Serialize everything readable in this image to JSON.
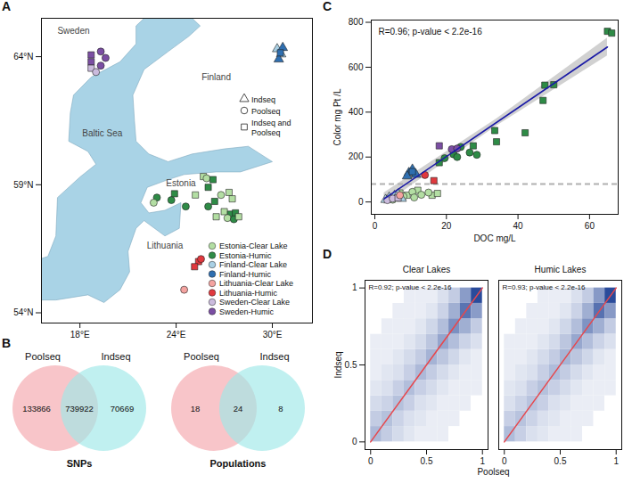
{
  "chart_data": [
    {
      "type": "map",
      "panel": "A",
      "xlim": [
        15.6,
        32.5
      ],
      "ylim": [
        53.6,
        65.5
      ],
      "xticks": [
        {
          "value": 18,
          "label": "18°E"
        },
        {
          "value": 24,
          "label": "24°E"
        },
        {
          "value": 30,
          "label": "30°E"
        }
      ],
      "yticks": [
        {
          "value": 54,
          "label": "54°N"
        },
        {
          "value": 59,
          "label": "59°N"
        },
        {
          "value": 64,
          "label": "64°N"
        }
      ],
      "baltic_sea": {
        "color": "#a9d3e6",
        "lon": [
          24.5,
          25.5,
          24.8,
          23.5,
          22,
          21.3,
          21.4,
          21.5,
          22.3,
          23.5,
          25,
          27,
          28.5,
          30,
          28,
          26.5,
          24.5,
          23.5,
          22.2,
          21.8,
          22.3,
          23.3,
          24.3,
          24.2,
          23.3,
          22,
          21.5,
          21,
          21.1,
          20.5,
          19.5,
          18.5,
          16.5,
          15,
          15,
          16,
          16.5,
          16.6,
          18,
          19,
          18.5,
          17.3,
          17.4,
          17.6,
          18.7,
          20.5,
          21.5,
          21.5,
          22.5
        ],
        "lat": [
          65.8,
          65.2,
          64.8,
          64.2,
          63.5,
          62.5,
          61.5,
          60.7,
          60.2,
          59.9,
          60.2,
          60.4,
          60.5,
          59.9,
          59.5,
          59.5,
          59.4,
          59.2,
          58.9,
          58.3,
          57.9,
          58.0,
          58.3,
          57.3,
          57,
          57.6,
          57.3,
          56.4,
          55.6,
          54.9,
          54.4,
          54.7,
          54.5,
          54.5,
          56,
          56.2,
          57,
          58.5,
          59.3,
          59.8,
          60.3,
          60.7,
          61.8,
          62.5,
          63.2,
          63.8,
          64.5,
          65.2,
          65.8
        ]
      },
      "annotations": [
        {
          "text": "Sweden",
          "x": 17.6,
          "y": 65.0
        },
        {
          "text": "Finland",
          "x": 26.5,
          "y": 63.2
        },
        {
          "text": "Baltic Sea",
          "x": 19.4,
          "y": 61.0
        },
        {
          "text": "Estonia",
          "x": 24.3,
          "y": 59.05
        },
        {
          "text": "Lithuania",
          "x": 23.3,
          "y": 56.6
        }
      ],
      "series": [
        {
          "name": "Estonia-Clear Lake",
          "color": "#b3dea3"
        },
        {
          "name": "Estonia-Humic",
          "color": "#2e8b46"
        },
        {
          "name": "Finland-Clear Lake",
          "color": "#a9d0e4"
        },
        {
          "name": "Finland-Humic",
          "color": "#2f6fb0"
        },
        {
          "name": "Lithuania-Clear Lake",
          "color": "#f4a3a0"
        },
        {
          "name": "Lithuania-Humic",
          "color": "#e0393e"
        },
        {
          "name": "Sweden-Clear Lake",
          "color": "#cbbbdd"
        },
        {
          "name": "Sweden-Humic",
          "color": "#7b4ea3"
        }
      ],
      "markers": [
        {
          "name": "Indseq",
          "marker": "triangle"
        },
        {
          "name": "Poolseq",
          "marker": "circle"
        },
        {
          "name": "Indseq and Poolseq",
          "marker": "square"
        }
      ],
      "legend": "right",
      "points": {
        "x": [
          18.7,
          18.7,
          18.7,
          19.3,
          19.6,
          19.3,
          19.0,
          30.3,
          30.55,
          30.4,
          30.65,
          30.5,
          25.7,
          25.9,
          26.3,
          26.0,
          23.9,
          22.8,
          22.6,
          23.7,
          24.6,
          26.4,
          26.0,
          27.3,
          27.5,
          27.0,
          27.4,
          27.7,
          27.2,
          27.6,
          26.5,
          27.9,
          26.8,
          25.2,
          25.4,
          25.15,
          25.55,
          24.5
        ],
        "y": [
          64.07,
          63.8,
          63.55,
          64.2,
          63.95,
          63.65,
          63.4,
          64.3,
          64.1,
          63.9,
          64.35,
          64.15,
          59.32,
          59.25,
          59.2,
          58.9,
          58.65,
          58.5,
          58.3,
          58.4,
          58.15,
          58.35,
          58.15,
          58.7,
          58.45,
          57.95,
          57.85,
          57.9,
          57.7,
          57.65,
          57.75,
          57.75,
          58.6,
          58.6,
          56.0,
          55.8,
          56.1,
          54.9
        ],
        "group": [
          "Sweden-Humic",
          "Sweden-Humic",
          "Sweden-Clear Lake",
          "Sweden-Humic",
          "Sweden-Humic",
          "Sweden-Humic",
          "Sweden-Clear Lake",
          "Finland-Clear Lake",
          "Finland-Clear Lake",
          "Finland-Humic",
          "Finland-Humic",
          "Finland-Humic",
          "Estonia-Clear Lake",
          "Estonia-Clear Lake",
          "Estonia-Humic",
          "Estonia-Humic",
          "Estonia-Humic",
          "Estonia-Humic",
          "Estonia-Clear Lake",
          "Estonia-Humic",
          "Estonia-Humic",
          "Estonia-Humic",
          "Estonia-Humic",
          "Estonia-Clear Lake",
          "Estonia-Clear Lake",
          "Estonia-Clear Lake",
          "Estonia-Humic",
          "Estonia-Humic",
          "Estonia-Clear Lake",
          "Estonia-Humic",
          "Estonia-Clear Lake",
          "Estonia-Clear Lake",
          "Estonia-Clear Lake",
          "Estonia-Clear Lake",
          "Lithuania-Humic",
          "Lithuania-Humic",
          "Lithuania-Humic",
          "Lithuania-Clear Lake"
        ],
        "shape": [
          "Indseq and Poolseq",
          "Indseq and Poolseq",
          "Indseq and Poolseq",
          "Poolseq",
          "Poolseq",
          "Poolseq",
          "Poolseq",
          "Indseq",
          "Indseq",
          "Indseq",
          "Indseq",
          "Indseq and Poolseq",
          "Indseq and Poolseq",
          "Poolseq",
          "Indseq and Poolseq",
          "Indseq and Poolseq",
          "Indseq and Poolseq",
          "Poolseq",
          "Poolseq",
          "Poolseq",
          "Poolseq",
          "Indseq and Poolseq",
          "Poolseq",
          "Indseq and Poolseq",
          "Indseq and Poolseq",
          "Indseq and Poolseq",
          "Indseq and Poolseq",
          "Indseq and Poolseq",
          "Poolseq",
          "Poolseq",
          "Indseq and Poolseq",
          "Indseq and Poolseq",
          "Poolseq",
          "Indseq and Poolseq",
          "Indseq and Poolseq",
          "Indseq and Poolseq",
          "Poolseq",
          "Poolseq"
        ]
      }
    },
    {
      "type": "venn",
      "panel": "B",
      "diagrams": [
        {
          "sets": [
            {
              "name": "Poolseq",
              "color": "#f4a6ac"
            },
            {
              "name": "Indseq",
              "color": "#9ee8e8"
            }
          ],
          "values": [
            133866,
            739922,
            70669
          ],
          "caption": "SNPs"
        },
        {
          "sets": [
            {
              "name": "Poolseq",
              "color": "#f4a6ac"
            },
            {
              "name": "Indseq",
              "color": "#9ee8e8"
            }
          ],
          "values": [
            18,
            24,
            8
          ],
          "caption": "Populations"
        }
      ]
    },
    {
      "type": "scatter",
      "panel": "C",
      "x_label": "DOC mg/L",
      "y_label": "Color mg Pt /L",
      "xlim": [
        -1,
        68
      ],
      "ylim": [
        -55,
        810
      ],
      "xticks": [
        0,
        20,
        40,
        60
      ],
      "yticks": [
        0,
        200,
        400,
        600,
        800
      ],
      "annotation": "R=0.96; p-value < 2.2e-16",
      "series": [
        {
          "name": "Estonia-Clear Lake",
          "color": "#b3dea3"
        },
        {
          "name": "Estonia-Humic",
          "color": "#2e8b46"
        },
        {
          "name": "Finland-Clear Lake",
          "color": "#a9d0e4"
        },
        {
          "name": "Finland-Humic",
          "color": "#2f6fb0"
        },
        {
          "name": "Lithuania-Clear Lake",
          "color": "#f4a3a0"
        },
        {
          "name": "Lithuania-Humic",
          "color": "#e0393e"
        },
        {
          "name": "Sweden-Clear Lake",
          "color": "#cbbbdd"
        },
        {
          "name": "Sweden-Humic",
          "color": "#7b4ea3"
        }
      ],
      "markers": [
        {
          "name": "Indseq",
          "marker": "triangle"
        },
        {
          "name": "Poolseq",
          "marker": "circle"
        },
        {
          "name": "Indseq and Poolseq",
          "marker": "square"
        }
      ],
      "x": [
        65,
        66.2,
        47.5,
        50,
        47,
        42,
        33.5,
        34,
        27.5,
        18,
        19.5,
        22,
        24,
        26.5,
        28.5,
        23,
        18,
        21.5,
        23,
        9.5,
        10.5,
        11.5,
        9,
        10.5,
        14,
        16.5,
        4,
        6,
        7,
        9,
        12,
        16,
        17.5,
        5,
        8,
        10.5,
        13,
        11,
        15,
        3,
        4,
        5.5,
        6.5,
        7.5,
        3.5,
        5,
        6.5,
        7
      ],
      "y": [
        760,
        752,
        520,
        522,
        452,
        308,
        318,
        268,
        250,
        175,
        195,
        212,
        245,
        220,
        210,
        200,
        250,
        235,
        238,
        130,
        145,
        122,
        115,
        135,
        120,
        95,
        15,
        22,
        40,
        30,
        52,
        30,
        38,
        10,
        25,
        45,
        32,
        20,
        42,
        10,
        20,
        28,
        35,
        15,
        8,
        15,
        18,
        30
      ],
      "group": [
        "Estonia-Humic",
        "Estonia-Humic",
        "Estonia-Humic",
        "Estonia-Humic",
        "Estonia-Humic",
        "Estonia-Humic",
        "Estonia-Humic",
        "Estonia-Humic",
        "Estonia-Humic",
        "Estonia-Humic",
        "Estonia-Humic",
        "Estonia-Humic",
        "Estonia-Humic",
        "Estonia-Humic",
        "Estonia-Humic",
        "Estonia-Humic",
        "Sweden-Humic",
        "Sweden-Humic",
        "Sweden-Humic",
        "Finland-Humic",
        "Finland-Humic",
        "Finland-Humic",
        "Finland-Humic",
        "Finland-Humic",
        "Lithuania-Humic",
        "Lithuania-Humic",
        "Estonia-Clear Lake",
        "Estonia-Clear Lake",
        "Estonia-Clear Lake",
        "Estonia-Clear Lake",
        "Estonia-Clear Lake",
        "Estonia-Clear Lake",
        "Estonia-Clear Lake",
        "Estonia-Clear Lake",
        "Estonia-Clear Lake",
        "Estonia-Clear Lake",
        "Estonia-Clear Lake",
        "Estonia-Clear Lake",
        "Estonia-Clear Lake",
        "Finland-Clear Lake",
        "Finland-Clear Lake",
        "Finland-Clear Lake",
        "Finland-Clear Lake",
        "Finland-Clear Lake",
        "Sweden-Clear Lake",
        "Sweden-Clear Lake",
        "Sweden-Clear Lake",
        "Lithuania-Clear Lake"
      ],
      "shape": [
        "Indseq and Poolseq",
        "Indseq and Poolseq",
        "Indseq and Poolseq",
        "Indseq and Poolseq",
        "Indseq and Poolseq",
        "Indseq and Poolseq",
        "Indseq and Poolseq",
        "Indseq and Poolseq",
        "Indseq and Poolseq",
        "Indseq and Poolseq",
        "Poolseq",
        "Poolseq",
        "Poolseq",
        "Poolseq",
        "Poolseq",
        "Poolseq",
        "Indseq and Poolseq",
        "Poolseq",
        "Poolseq",
        "Indseq",
        "Indseq",
        "Indseq",
        "Indseq",
        "Indseq and Poolseq",
        "Poolseq",
        "Indseq and Poolseq",
        "Indseq and Poolseq",
        "Indseq and Poolseq",
        "Indseq and Poolseq",
        "Indseq and Poolseq",
        "Indseq and Poolseq",
        "Indseq and Poolseq",
        "Indseq and Poolseq",
        "Poolseq",
        "Poolseq",
        "Poolseq",
        "Poolseq",
        "Poolseq",
        "Poolseq",
        "Indseq",
        "Indseq",
        "Indseq",
        "Indseq",
        "Indseq",
        "Poolseq",
        "Poolseq",
        "Indseq and Poolseq",
        "Poolseq"
      ],
      "fit": {
        "x": [
          2.6,
          65
        ],
        "y": [
          14,
          690
        ],
        "color": "#1a1aa6"
      },
      "band": {
        "x": [
          2.6,
          34,
          65
        ],
        "lower": [
          -12,
          338,
          650
        ],
        "upper": [
          40,
          370,
          730
        ],
        "color": "#bdbdbd"
      },
      "reference_line": {
        "y": 80,
        "color": "#b0b0b0",
        "line_style": "dashed"
      }
    },
    {
      "type": "heatmap",
      "panel": "D",
      "x_label": "Poolseq",
      "y_label": "Indseq",
      "xlim": [
        -0.05,
        1.05
      ],
      "ylim": [
        -0.05,
        1.05
      ],
      "xticks": [
        0,
        0.5,
        1
      ],
      "yticks": [
        0,
        0.5,
        1
      ],
      "color": "#2a4b9b",
      "bins": [
        0,
        0.1,
        0.2,
        0.3,
        0.4,
        0.5,
        0.6,
        0.7,
        0.8,
        0.9,
        1
      ],
      "reference_line": {
        "x": [
          0,
          1
        ],
        "y": [
          0,
          1
        ],
        "color": "#e8474c"
      },
      "panels": [
        {
          "title": "Clear Lakes",
          "annotation": "R=0.92; p-value < 2.2e-16",
          "cells": [
            [
              0.15,
              0.08,
              0.04,
              0.02,
              0.01,
              0.01,
              0.01,
              0,
              0,
              0
            ],
            [
              0.08,
              0.12,
              0.06,
              0.03,
              0.02,
              0.01,
              0.01,
              0.01,
              0,
              0
            ],
            [
              0.04,
              0.06,
              0.12,
              0.07,
              0.03,
              0.02,
              0.01,
              0.01,
              0.01,
              0
            ],
            [
              0.02,
              0.03,
              0.07,
              0.13,
              0.07,
              0.04,
              0.02,
              0.01,
              0.01,
              0.01
            ],
            [
              0.01,
              0.02,
              0.03,
              0.07,
              0.15,
              0.08,
              0.04,
              0.02,
              0.01,
              0.01
            ],
            [
              0.01,
              0.01,
              0.02,
              0.04,
              0.08,
              0.18,
              0.1,
              0.05,
              0.02,
              0.01
            ],
            [
              0.01,
              0.01,
              0.01,
              0.02,
              0.04,
              0.1,
              0.25,
              0.13,
              0.06,
              0.03
            ],
            [
              0,
              0.01,
              0.01,
              0.01,
              0.02,
              0.05,
              0.13,
              0.38,
              0.2,
              0.08
            ],
            [
              0,
              0,
              0.01,
              0.01,
              0.01,
              0.02,
              0.06,
              0.2,
              0.6,
              0.3
            ],
            [
              0,
              0,
              0,
              0.01,
              0.01,
              0.01,
              0.03,
              0.08,
              0.3,
              1
            ]
          ]
        },
        {
          "title": "Humic Lakes",
          "annotation": "R=0.93; p-value < 2.2e-16",
          "cells": [
            [
              0.14,
              0.07,
              0.03,
              0.02,
              0.01,
              0.01,
              0.01,
              0,
              0,
              0
            ],
            [
              0.07,
              0.11,
              0.06,
              0.03,
              0.02,
              0.01,
              0.01,
              0.01,
              0,
              0
            ],
            [
              0.03,
              0.06,
              0.11,
              0.07,
              0.03,
              0.02,
              0.01,
              0.01,
              0.01,
              0
            ],
            [
              0.02,
              0.03,
              0.07,
              0.12,
              0.07,
              0.04,
              0.02,
              0.01,
              0.01,
              0.01
            ],
            [
              0.01,
              0.02,
              0.03,
              0.07,
              0.14,
              0.08,
              0.04,
              0.02,
              0.01,
              0.01
            ],
            [
              0.01,
              0.01,
              0.02,
              0.04,
              0.08,
              0.17,
              0.1,
              0.05,
              0.02,
              0.01
            ],
            [
              0.01,
              0.01,
              0.01,
              0.02,
              0.04,
              0.1,
              0.24,
              0.13,
              0.06,
              0.03
            ],
            [
              0,
              0.01,
              0.01,
              0.01,
              0.02,
              0.05,
              0.13,
              0.36,
              0.2,
              0.08
            ],
            [
              0,
              0,
              0.01,
              0.01,
              0.01,
              0.02,
              0.06,
              0.2,
              0.62,
              0.32
            ],
            [
              0,
              0,
              0,
              0.01,
              0.01,
              0.01,
              0.03,
              0.08,
              0.32,
              1
            ]
          ]
        }
      ]
    }
  ]
}
